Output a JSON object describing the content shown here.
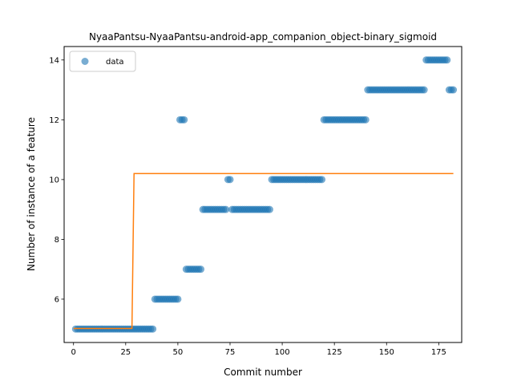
{
  "chart_data": {
    "type": "scatter",
    "title": "NyaaPantsu-NyaaPantsu-android-app_companion_object-binary_sigmoid",
    "xlabel": "Commit number",
    "ylabel": "Number of instance of a feature",
    "xlim": [
      -4.5,
      186
    ],
    "ylim": [
      4.55,
      14.45
    ],
    "xticks": [
      0,
      25,
      50,
      75,
      100,
      125,
      150,
      175
    ],
    "yticks": [
      6,
      8,
      10,
      12,
      14
    ],
    "grid": false,
    "legend": {
      "position": "top-left",
      "entries": [
        "data"
      ]
    },
    "colors": {
      "data": "#1f77b4",
      "fit": "#ff7f0e"
    },
    "series": [
      {
        "name": "data",
        "kind": "scatter",
        "segments": [
          {
            "x_from": 1,
            "x_to": 38,
            "y": 5
          },
          {
            "x_from": 39,
            "x_to": 50,
            "y": 6
          },
          {
            "x_from": 51,
            "x_to": 53,
            "y": 12
          },
          {
            "x_from": 54,
            "x_to": 61,
            "y": 7
          },
          {
            "x_from": 62,
            "x_to": 73,
            "y": 9
          },
          {
            "x_from": 74,
            "x_to": 75,
            "y": 10
          },
          {
            "x_from": 76,
            "x_to": 94,
            "y": 9
          },
          {
            "x_from": 95,
            "x_to": 119,
            "y": 10
          },
          {
            "x_from": 120,
            "x_to": 140,
            "y": 12
          },
          {
            "x_from": 141,
            "x_to": 168,
            "y": 13
          },
          {
            "x_from": 169,
            "x_to": 179,
            "y": 14
          },
          {
            "x_from": 180,
            "x_to": 182,
            "y": 13
          }
        ]
      },
      {
        "kind": "line",
        "points": [
          [
            0,
            5.02
          ],
          [
            28,
            5.02
          ],
          [
            29,
            10.2
          ],
          [
            182,
            10.2
          ]
        ]
      }
    ]
  }
}
